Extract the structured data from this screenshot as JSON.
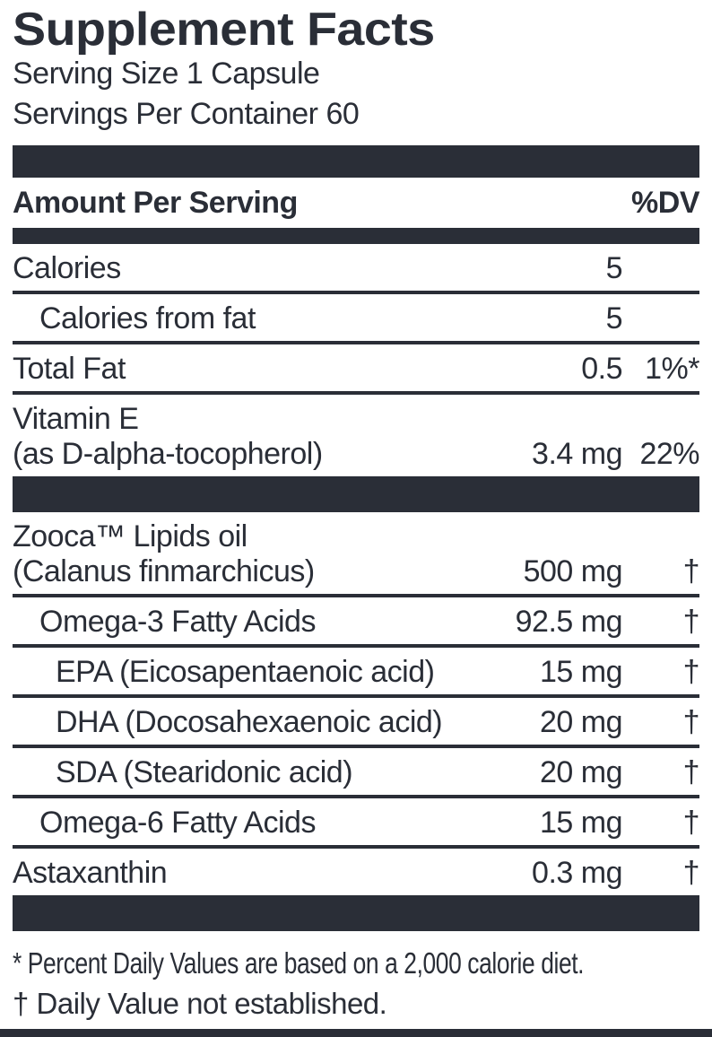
{
  "colors": {
    "ink": "#2a2e37",
    "background": "#ffffff"
  },
  "header": {
    "title": "Supplement Facts",
    "serving_size": "Serving Size 1 Capsule",
    "servings_per_container": "Servings Per Container 60"
  },
  "table": {
    "columns": {
      "amount_label": "Amount Per Serving",
      "dv_label": "%DV"
    },
    "rows": [
      {
        "name": "Calories",
        "amount": "5",
        "dv": ""
      },
      {
        "name": "Calories from fat",
        "amount": "5",
        "dv": ""
      },
      {
        "name": "Total Fat",
        "amount": "0.5",
        "dv": "1%*"
      },
      {
        "name": "Vitamin E",
        "name_line2": "(as D-alpha-tocopherol)",
        "amount": "3.4 mg",
        "dv": "22%"
      },
      {
        "name": "Zooca™ Lipids oil",
        "name_line2": "(Calanus finmarchicus)",
        "amount": "500 mg",
        "dv": "†"
      },
      {
        "name": "Omega-3 Fatty Acids",
        "amount": "92.5 mg",
        "dv": "†"
      },
      {
        "name": "EPA (Eicosapentaenoic acid)",
        "amount": "15 mg",
        "dv": "†"
      },
      {
        "name": "DHA (Docosahexaenoic acid)",
        "amount": "20 mg",
        "dv": "†"
      },
      {
        "name": "SDA (Stearidonic acid)",
        "amount": "20 mg",
        "dv": "†"
      },
      {
        "name": "Omega-6 Fatty Acids",
        "amount": "15 mg",
        "dv": "†"
      },
      {
        "name": "Astaxanthin",
        "amount": "0.3 mg",
        "dv": "†"
      }
    ]
  },
  "footnotes": {
    "percent_dv": "* Percent Daily Values are based on a 2,000 calorie diet.",
    "dv_not_established": "† Daily Value not established."
  }
}
